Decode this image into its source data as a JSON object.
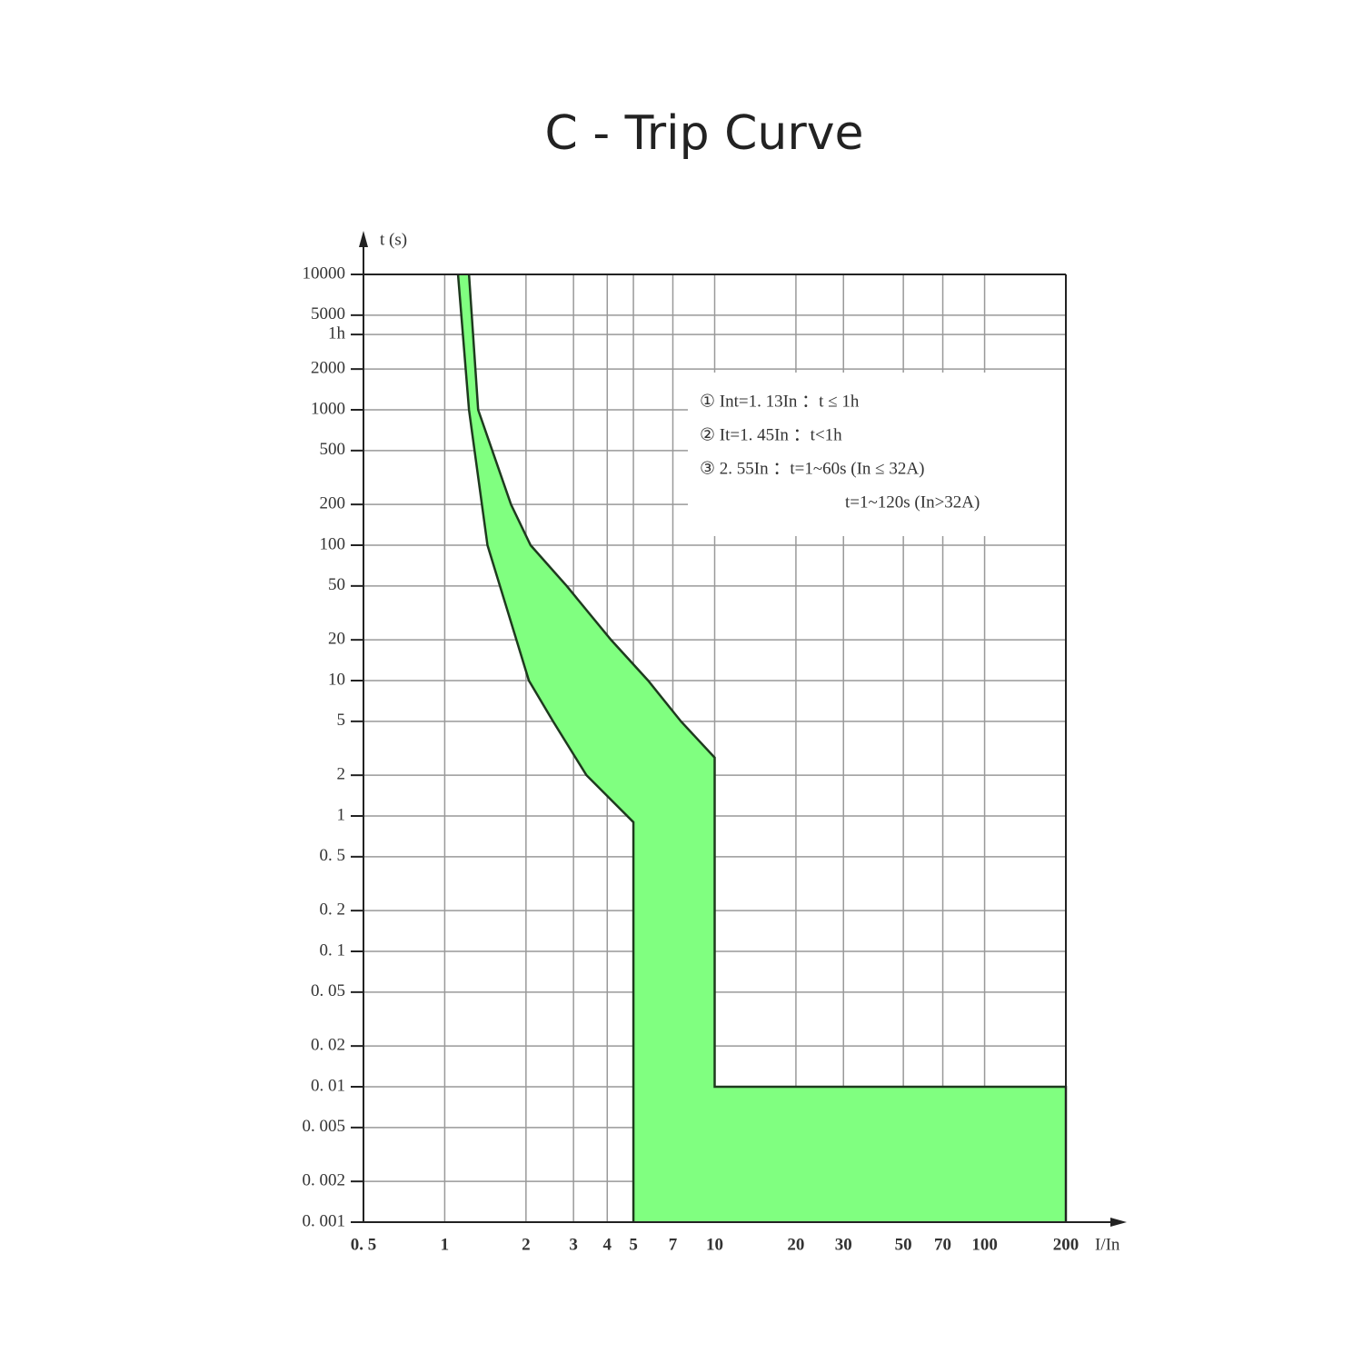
{
  "chart_data": {
    "type": "band",
    "title": "C - Trip Curve",
    "y_label": "t (s)",
    "x_label": "I/In",
    "log_x": true,
    "log_y": true,
    "grid": true,
    "fill_color": "#80ff80",
    "line_color": "#1e3a1e",
    "xlim": [
      0.5,
      200
    ],
    "ylim": [
      0.001,
      10000
    ],
    "xticks": [
      {
        "value": 0.5,
        "label": "0. 5"
      },
      1,
      2,
      3,
      4,
      5,
      7,
      10,
      20,
      30,
      50,
      70,
      100,
      200
    ],
    "yticks": [
      10000,
      5000,
      {
        "value": 3600,
        "label": "1h"
      },
      2000,
      1000,
      500,
      200,
      100,
      50,
      20,
      10,
      5,
      2,
      1,
      {
        "value": 0.5,
        "label": "0. 5"
      },
      {
        "value": 0.2,
        "label": "0. 2"
      },
      {
        "value": 0.1,
        "label": "0. 1"
      },
      {
        "value": 0.05,
        "label": "0. 05"
      },
      {
        "value": 0.02,
        "label": "0. 02"
      },
      {
        "value": 0.01,
        "label": "0. 01"
      },
      {
        "value": 0.005,
        "label": "0. 005"
      },
      {
        "value": 0.002,
        "label": "0. 002"
      },
      {
        "value": 0.001,
        "label": "0. 001"
      }
    ],
    "series": [
      {
        "name": "lower",
        "x": [
          1.12,
          1.23,
          1.44,
          2.05,
          2.52,
          3.35,
          5,
          5
        ],
        "values": [
          10000,
          1000,
          100,
          10,
          5,
          2,
          0.9,
          0.001
        ]
      },
      {
        "name": "upper",
        "x": [
          1.23,
          1.33,
          1.76,
          2.08,
          2.83,
          4.13,
          5.67,
          7.5,
          10,
          10,
          200,
          200
        ],
        "values": [
          10000,
          1000,
          200,
          100,
          50,
          20,
          10,
          5,
          2.7,
          0.01,
          0.01,
          0.001
        ]
      }
    ],
    "annotations": [
      "① Int=1. 13In ：t ≤ 1h",
      "② It=1. 45In ：t<1h",
      "③ 2. 55In ：t=1~60s (In ≤ 32A)",
      "t=1~120s (In>32A)"
    ]
  }
}
